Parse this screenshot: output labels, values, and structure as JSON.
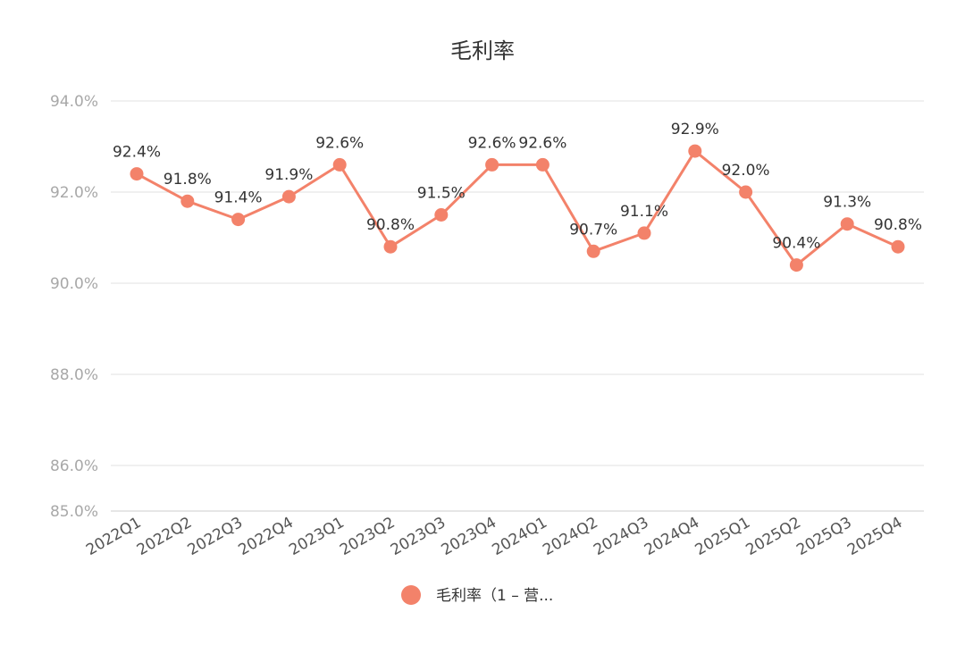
{
  "colors": {
    "series": "#f3826a",
    "grid": "#e2e2e2",
    "axis": "#cccccc"
  },
  "chart_data": {
    "type": "line",
    "title": "毛利率",
    "categories": [
      "2022Q1",
      "2022Q2",
      "2022Q3",
      "2022Q4",
      "2023Q1",
      "2023Q2",
      "2023Q3",
      "2023Q4",
      "2024Q1",
      "2024Q2",
      "2024Q3",
      "2024Q4",
      "2025Q1",
      "2025Q2",
      "2025Q3",
      "2025Q4"
    ],
    "series": [
      {
        "name": "毛利率（1 – 营...",
        "values": [
          92.4,
          91.8,
          91.4,
          91.9,
          92.6,
          90.8,
          91.5,
          92.6,
          92.6,
          90.7,
          91.1,
          92.9,
          92.0,
          90.4,
          91.3,
          90.8
        ],
        "labels": [
          "92.4%",
          "91.8%",
          "91.4%",
          "91.9%",
          "92.6%",
          "90.8%",
          "91.5%",
          "92.6%",
          "92.6%",
          "90.7%",
          "91.1%",
          "92.9%",
          "92.0%",
          "90.4%",
          "91.3%",
          "90.8%"
        ]
      }
    ],
    "yticks": [
      85,
      86,
      88,
      90,
      92,
      94
    ],
    "ytick_labels": [
      "85.0%",
      "86.0%",
      "88.0%",
      "90.0%",
      "92.0%",
      "94.0%"
    ],
    "ylim": [
      85,
      94
    ],
    "grid": true,
    "legend_position": "bottom",
    "xlabel": "",
    "ylabel": ""
  }
}
